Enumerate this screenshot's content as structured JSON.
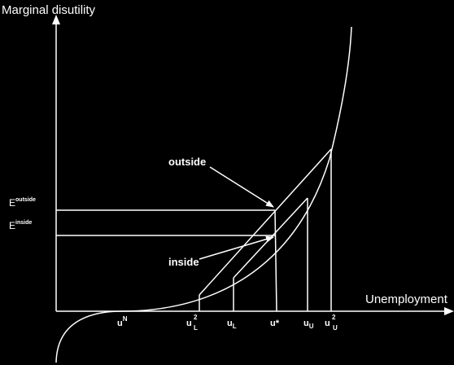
{
  "axes": {
    "y_label": "Marginal disutility",
    "x_label": "Unemployment"
  },
  "annotations": {
    "outside": "outside",
    "inside": "inside"
  },
  "e_labels": {
    "outside": {
      "main": "E",
      "sup": "outside"
    },
    "inside": {
      "main": "E",
      "sup": "inside"
    }
  },
  "ticks": {
    "uN": {
      "main": "u",
      "sup": "N"
    },
    "u2L": {
      "main": "u",
      "sup": "2",
      "sub": "L"
    },
    "uL": {
      "main": "u",
      "sub": "L"
    },
    "ustar": {
      "main": "u*"
    },
    "uU": {
      "main": "u",
      "sub": "U"
    },
    "u2U": {
      "main": "u",
      "sup": "2",
      "sub": "U"
    }
  },
  "colors": {
    "background": "#000000",
    "ink": "#ffffff"
  }
}
